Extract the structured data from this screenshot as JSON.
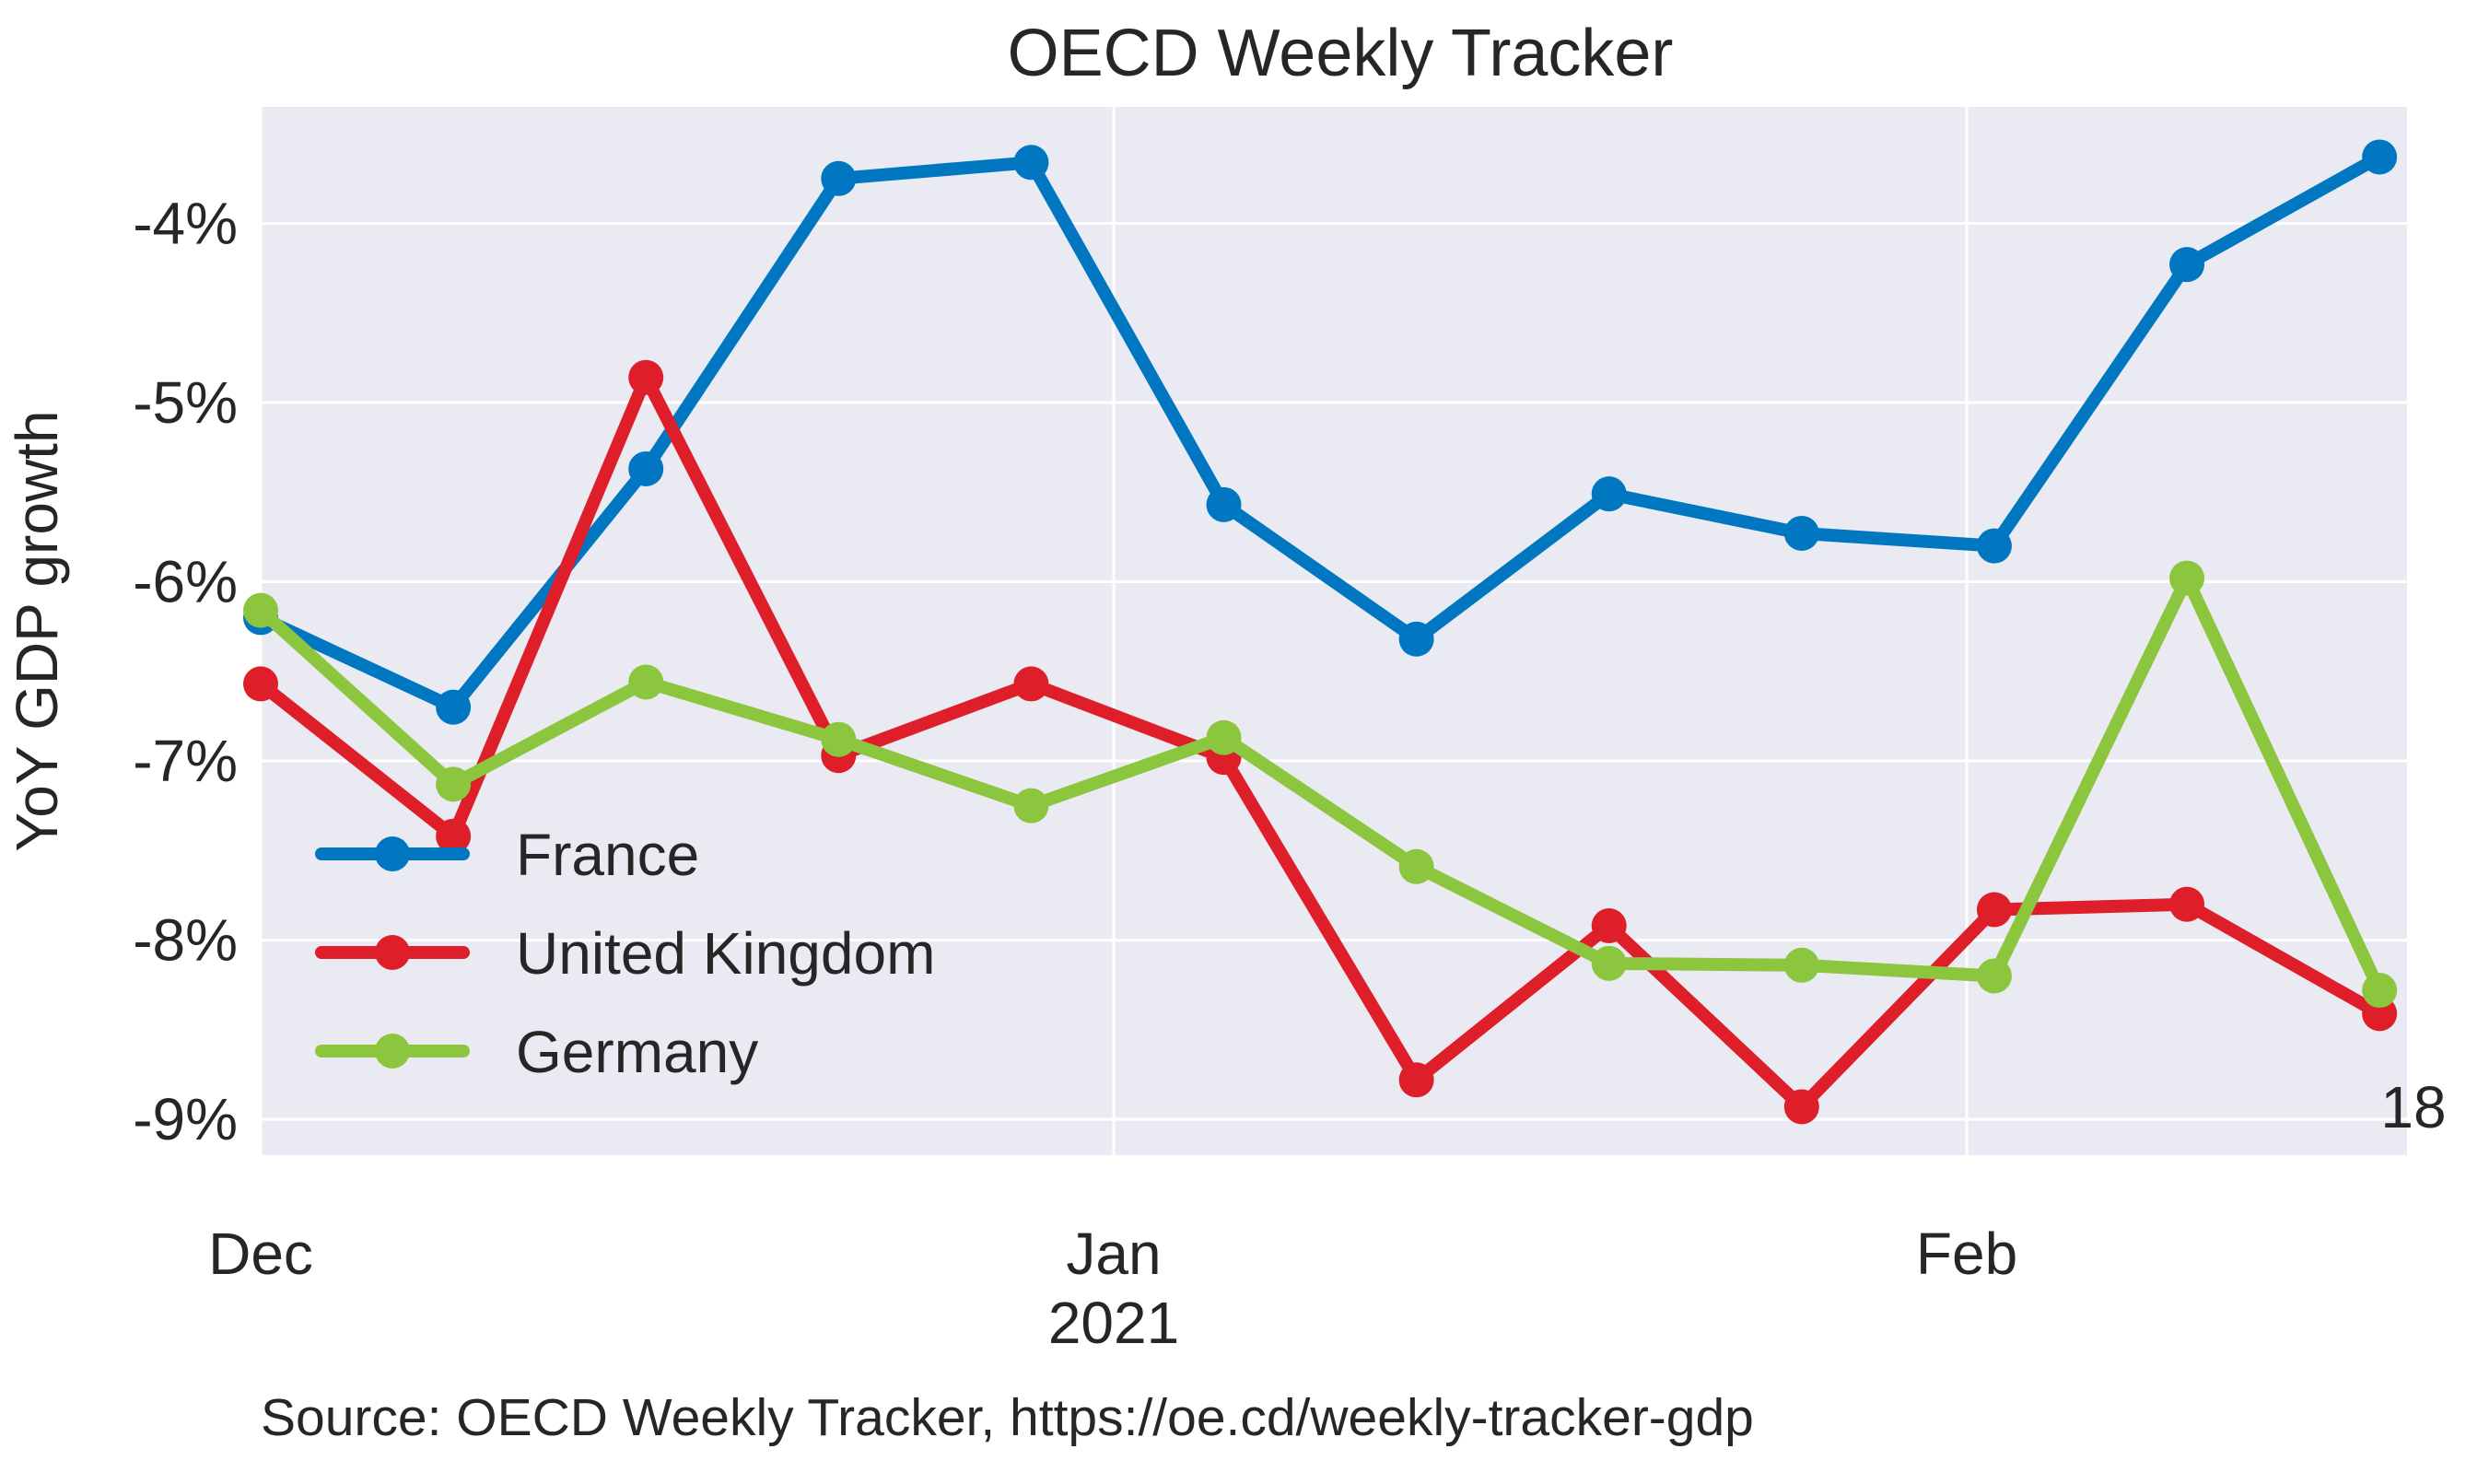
{
  "chart_data": {
    "type": "line",
    "title": "OECD Weekly Tracker",
    "ylabel": "YoY GDP growth",
    "xlabel": "",
    "source": "Source: OECD Weekly Tracker, https://oe.cd/weekly-tracker-gdp",
    "ylim": [
      -9.2,
      -3.35
    ],
    "y_ticks": [
      -9,
      -8,
      -7,
      -6,
      -5,
      -4
    ],
    "y_tick_labels": [
      "-9%",
      "-8%",
      "-7%",
      "-6%",
      "-5%",
      "-4%"
    ],
    "x": [
      "2020-12-01",
      "2020-12-08",
      "2020-12-15",
      "2020-12-22",
      "2020-12-29",
      "2021-01-05",
      "2021-01-12",
      "2021-01-19",
      "2021-01-26",
      "2021-02-02",
      "2021-02-09",
      "2021-02-16"
    ],
    "xlim": [
      "2020-12-01",
      "2021-02-17"
    ],
    "x_ticks": [
      {
        "date": "2020-12-01",
        "label": "Dec",
        "sublabel": ""
      },
      {
        "date": "2021-01-01",
        "label": "Jan",
        "sublabel": "2021"
      },
      {
        "date": "2021-02-01",
        "label": "Feb",
        "sublabel": ""
      }
    ],
    "end_label": "18",
    "grid": true,
    "legend_position": "lower-left",
    "series": [
      {
        "name": "France",
        "color": "#0077C0",
        "values": [
          -6.2,
          -6.7,
          -5.37,
          -3.75,
          -3.66,
          -5.57,
          -6.32,
          -5.51,
          -5.73,
          -5.8,
          -4.23,
          -3.63
        ]
      },
      {
        "name": "United Kingdom",
        "color": "#DE1F2A",
        "values": [
          -6.57,
          -7.42,
          -4.86,
          -6.97,
          -6.57,
          -6.98,
          -8.78,
          -7.92,
          -8.93,
          -7.83,
          -7.8,
          -8.41
        ]
      },
      {
        "name": "Germany",
        "color": "#8CC63F",
        "values": [
          -6.16,
          -7.13,
          -6.56,
          -6.88,
          -7.25,
          -6.87,
          -7.59,
          -8.13,
          -8.14,
          -8.2,
          -5.98,
          -8.28
        ]
      }
    ]
  }
}
